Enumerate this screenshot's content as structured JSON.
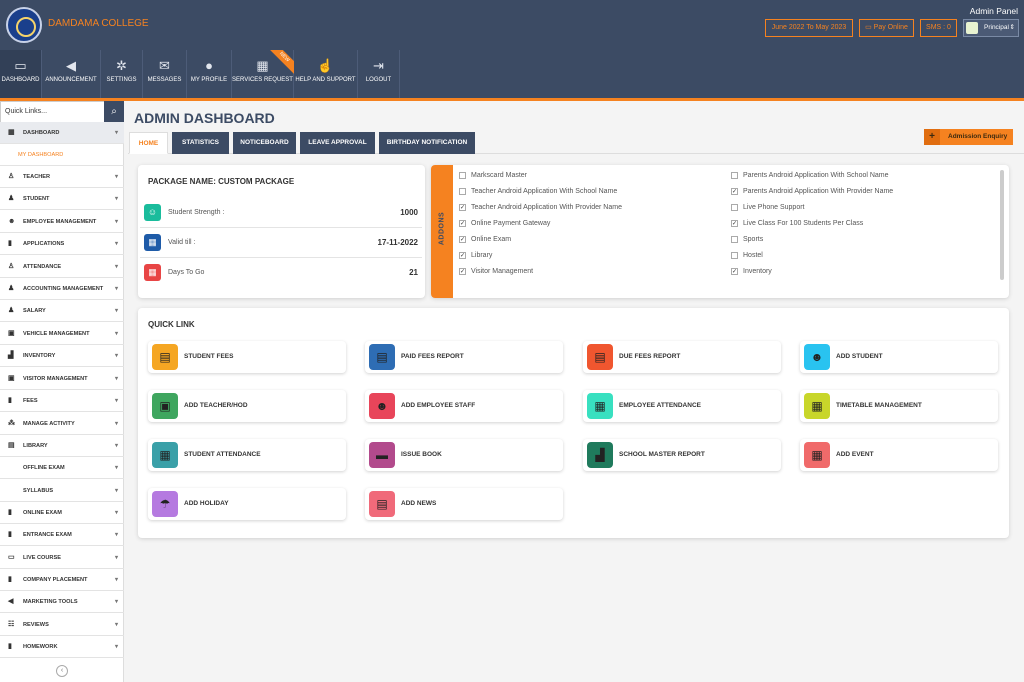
{
  "header": {
    "college_name": "DAMDAMA COLLEGE",
    "panel_label": "Admin Panel",
    "session": "June 2022 To May 2023",
    "pay_online": "Pay Online",
    "sms": "SMS : 0",
    "role": "Principal"
  },
  "nav": [
    {
      "label": "DASHBOARD",
      "icon": "monitor-icon"
    },
    {
      "label": "ANNOUNCEMENT",
      "icon": "megaphone-icon"
    },
    {
      "label": "SETTINGS",
      "icon": "gears-icon"
    },
    {
      "label": "MESSAGES",
      "icon": "envelope-icon"
    },
    {
      "label": "MY PROFILE",
      "icon": "user-icon"
    },
    {
      "label": "SERVICES REQUEST",
      "icon": "grid-icon"
    },
    {
      "label": "HELP AND SUPPORT",
      "icon": "thumbs-up-icon"
    },
    {
      "label": "LOGOUT",
      "icon": "logout-icon"
    }
  ],
  "new_badge": "NEW",
  "sidebar": {
    "quick_links_placeholder": "Quick Links...",
    "items": [
      {
        "label": "DASHBOARD",
        "icon": "dashboard-icon"
      },
      {
        "label": "MY DASHBOARD",
        "icon": ""
      },
      {
        "label": "TEACHER",
        "icon": "teacher-icon"
      },
      {
        "label": "STUDENT",
        "icon": "student-icon"
      },
      {
        "label": "EMPLOYEE MANAGEMENT",
        "icon": "users-icon"
      },
      {
        "label": "APPLICATIONS",
        "icon": "file-icon"
      },
      {
        "label": "ATTENDANCE",
        "icon": "attendance-icon"
      },
      {
        "label": "ACCOUNTING MANAGEMENT",
        "icon": "accounting-icon"
      },
      {
        "label": "SALARY",
        "icon": "salary-icon"
      },
      {
        "label": "VEHICLE MANAGEMENT",
        "icon": "bus-icon"
      },
      {
        "label": "INVENTORY",
        "icon": "inventory-icon"
      },
      {
        "label": "VISITOR MANAGEMENT",
        "icon": "visitor-icon"
      },
      {
        "label": "FEES",
        "icon": "fees-icon"
      },
      {
        "label": "MANAGE ACTIVITY",
        "icon": "activity-icon"
      },
      {
        "label": "LIBRARY",
        "icon": "library-icon"
      },
      {
        "label": "OFFLINE EXAM",
        "icon": ""
      },
      {
        "label": "SYLLABUS",
        "icon": ""
      },
      {
        "label": "ONLINE EXAM",
        "icon": "exam-icon"
      },
      {
        "label": "ENTRANCE EXAM",
        "icon": "entrance-icon"
      },
      {
        "label": "LIVE COURSE",
        "icon": "live-icon"
      },
      {
        "label": "COMPANY PLACEMENT",
        "icon": "company-icon"
      },
      {
        "label": "MARKETING TOOLS",
        "icon": "marketing-icon"
      },
      {
        "label": "REVIEWS",
        "icon": "reviews-icon"
      },
      {
        "label": "HOMEWORK",
        "icon": "homework-icon"
      }
    ]
  },
  "page": {
    "title": "ADMIN DASHBOARD",
    "tabs": [
      "HOME",
      "STATISTICS",
      "NOTICEBOARD",
      "LEAVE APPROVAL",
      "BIRTHDAY NOTIFICATION"
    ],
    "enquiry_button": "Admission Enquiry"
  },
  "package": {
    "name": "PACKAGE NAME: CUSTOM PACKAGE",
    "rows": [
      {
        "label": "Student Strength :",
        "value": "1000",
        "icon": "user-circle-icon",
        "color": "#1abc9c"
      },
      {
        "label": "Valid till :",
        "value": "17-11-2022",
        "icon": "calendar-icon",
        "color": "#1e5ba8"
      },
      {
        "label": "Days To Go",
        "value": "21",
        "icon": "calendar-alert-icon",
        "color": "#e84545"
      }
    ]
  },
  "addons": {
    "label": "ADDONS",
    "left": [
      {
        "label": "Markscard Master",
        "checked": false
      },
      {
        "label": "Teacher Android Application With School Name",
        "checked": false
      },
      {
        "label": "Teacher Android Application With Provider Name",
        "checked": true
      },
      {
        "label": "Online Payment Gateway",
        "checked": true
      },
      {
        "label": "Online Exam",
        "checked": true
      },
      {
        "label": "Library",
        "checked": true
      },
      {
        "label": "Visitor Management",
        "checked": true
      }
    ],
    "right": [
      {
        "label": "Parents Android Application With School Name",
        "checked": false
      },
      {
        "label": "Parents Android Application With Provider Name",
        "checked": true
      },
      {
        "label": "Live Phone Support",
        "checked": false
      },
      {
        "label": "Live Class For 100 Students Per Class",
        "checked": true
      },
      {
        "label": "Sports",
        "checked": false
      },
      {
        "label": "Hostel",
        "checked": false
      },
      {
        "label": "Inventory",
        "checked": true
      }
    ]
  },
  "quick_link": {
    "title": "QUICK LINK",
    "items": [
      {
        "label": "STUDENT FEES",
        "icon": "fees-doc-icon",
        "color": "#f5a623"
      },
      {
        "label": "PAID FEES REPORT",
        "icon": "report-icon",
        "color": "#2e6db4"
      },
      {
        "label": "DUE FEES REPORT",
        "icon": "due-report-icon",
        "color": "#f0562f"
      },
      {
        "label": "ADD STUDENT",
        "icon": "add-student-icon",
        "color": "#29c3f0"
      },
      {
        "label": "ADD TEACHER/HOD",
        "icon": "teacher-board-icon",
        "color": "#3fa65f"
      },
      {
        "label": "ADD EMPLOYEE STAFF",
        "icon": "staff-icon",
        "color": "#e8455a"
      },
      {
        "label": "EMPLOYEE ATTENDANCE",
        "icon": "calendar-icon",
        "color": "#38e0c0"
      },
      {
        "label": "TIMETABLE MANAGEMENT",
        "icon": "timetable-icon",
        "color": "#c8d62a"
      },
      {
        "label": "STUDENT ATTENDANCE",
        "icon": "calendar-icon",
        "color": "#3aa0a8"
      },
      {
        "label": "ISSUE BOOK",
        "icon": "book-icon",
        "color": "#b24a8c"
      },
      {
        "label": "SCHOOL MASTER REPORT",
        "icon": "school-icon",
        "color": "#1f7a5c"
      },
      {
        "label": "ADD EVENT",
        "icon": "event-icon",
        "color": "#f06a6a"
      },
      {
        "label": "ADD HOLIDAY",
        "icon": "holiday-icon",
        "color": "#b57ae0"
      },
      {
        "label": "ADD NEWS",
        "icon": "news-icon",
        "color": "#f06a7a"
      }
    ]
  }
}
